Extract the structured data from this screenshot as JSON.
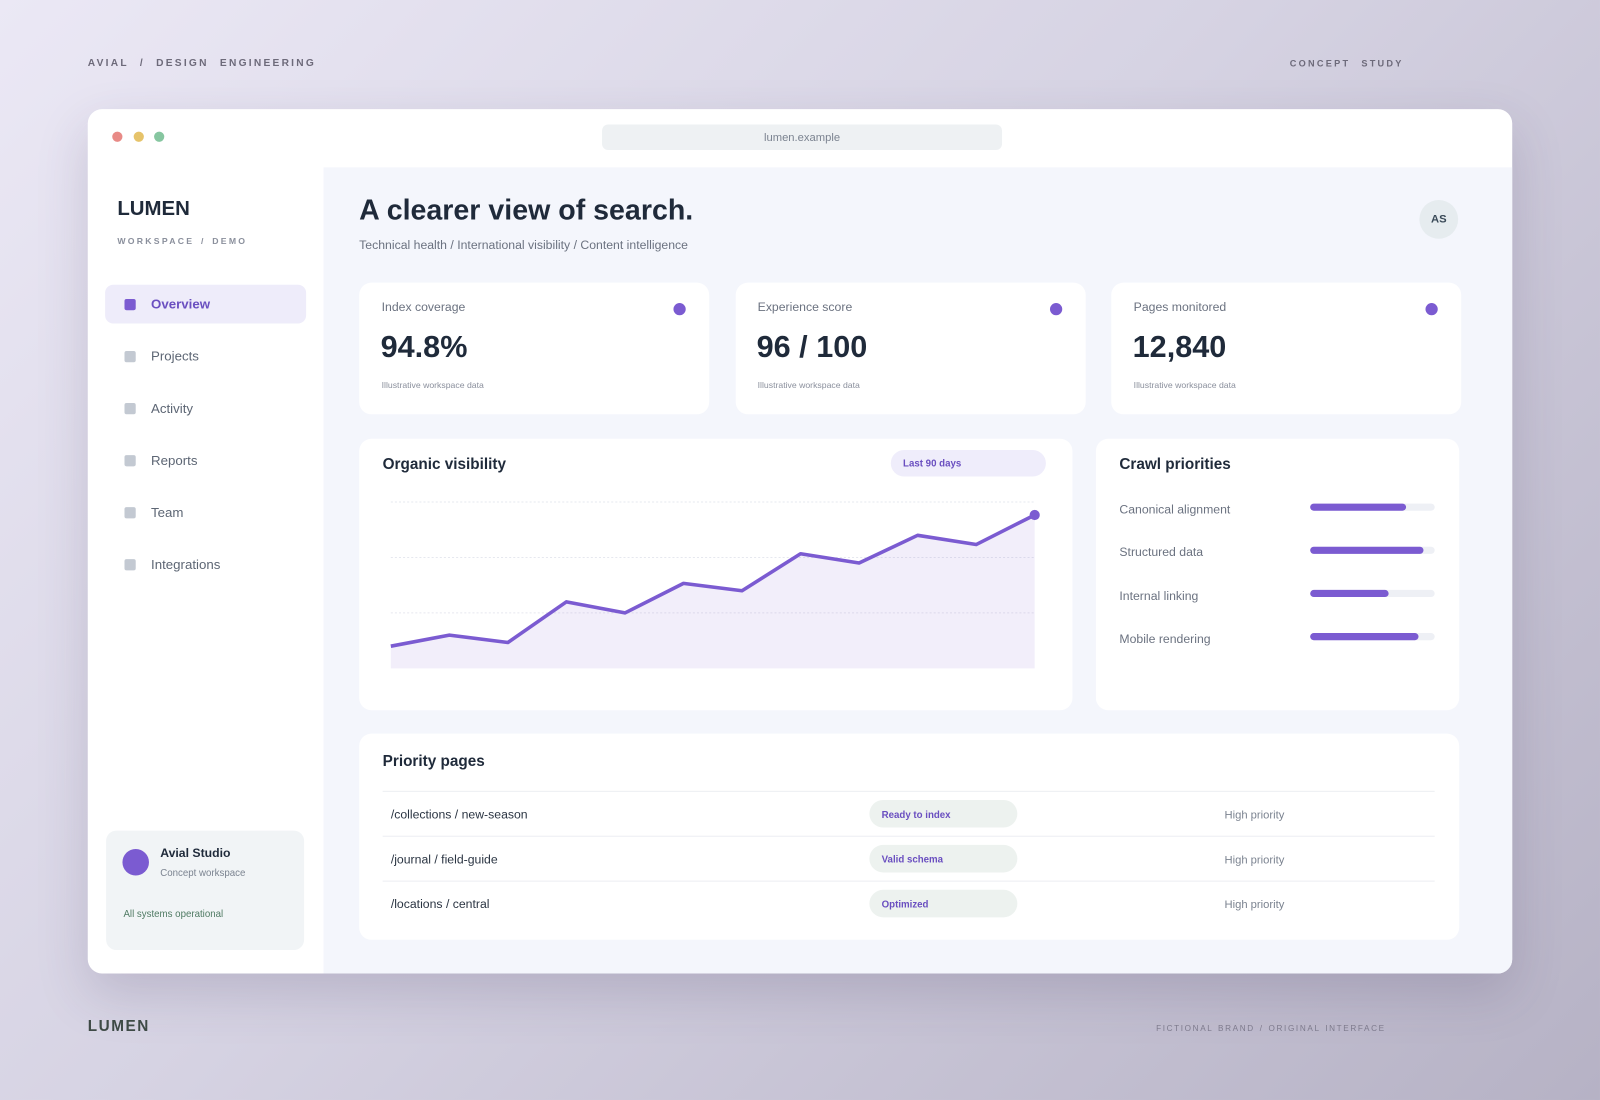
{
  "header": {
    "left": "AVIAL / DESIGN ENGINEERING",
    "right": "CONCEPT STUDY"
  },
  "browser": {
    "url": "lumen.example"
  },
  "sidebar": {
    "brand": "LUMEN",
    "workspace": "WORKSPACE / DEMO",
    "nav": [
      {
        "label": "Overview",
        "active": true
      },
      {
        "label": "Projects",
        "active": false
      },
      {
        "label": "Activity",
        "active": false
      },
      {
        "label": "Reports",
        "active": false
      },
      {
        "label": "Team",
        "active": false
      },
      {
        "label": "Integrations",
        "active": false
      }
    ],
    "profile": {
      "name": "Avial Studio",
      "role": "Concept workspace",
      "status": "All systems operational"
    }
  },
  "main": {
    "title": "A clearer view of search.",
    "subtitle": "Technical health / International visibility / Content intelligence",
    "avatar": "AS"
  },
  "stats": [
    {
      "label": "Index coverage",
      "value": "94.8%",
      "note": "Illustrative workspace data"
    },
    {
      "label": "Experience score",
      "value": "96 / 100",
      "note": "Illustrative workspace data"
    },
    {
      "label": "Pages monitored",
      "value": "12,840",
      "note": "Illustrative workspace data"
    }
  ],
  "chart_data": [
    {
      "type": "line",
      "title": "Organic visibility",
      "badge": "Last 90 days",
      "categories": [
        null,
        null,
        null,
        null,
        null,
        null,
        null,
        null,
        null,
        null,
        null,
        null
      ],
      "values": [
        12,
        18,
        14,
        36,
        30,
        46,
        42,
        62,
        57,
        72,
        67,
        83
      ],
      "color": "#7b5bd1",
      "area": true,
      "ylim": [
        0,
        90
      ],
      "yticks": [
        30,
        60,
        90
      ],
      "grid": true
    },
    {
      "type": "bar",
      "orientation": "horizontal",
      "title": "Crawl priorities",
      "categories": [
        "Canonical alignment",
        "Structured data",
        "Internal linking",
        "Mobile rendering"
      ],
      "values": [
        77,
        91,
        63,
        87
      ],
      "xlim": [
        0,
        100
      ],
      "color": "#7b5bd1"
    }
  ],
  "priority_pages": {
    "title": "Priority pages",
    "rows": [
      {
        "path": "/collections / new-season",
        "status": "Ready to index",
        "priority": "High priority"
      },
      {
        "path": "/journal / field-guide",
        "status": "Valid schema",
        "priority": "High priority"
      },
      {
        "path": "/locations / central",
        "status": "Optimized",
        "priority": "High priority"
      }
    ]
  },
  "footer": {
    "brand": "LUMEN",
    "note": "FICTIONAL BRAND / ORIGINAL INTERFACE"
  }
}
